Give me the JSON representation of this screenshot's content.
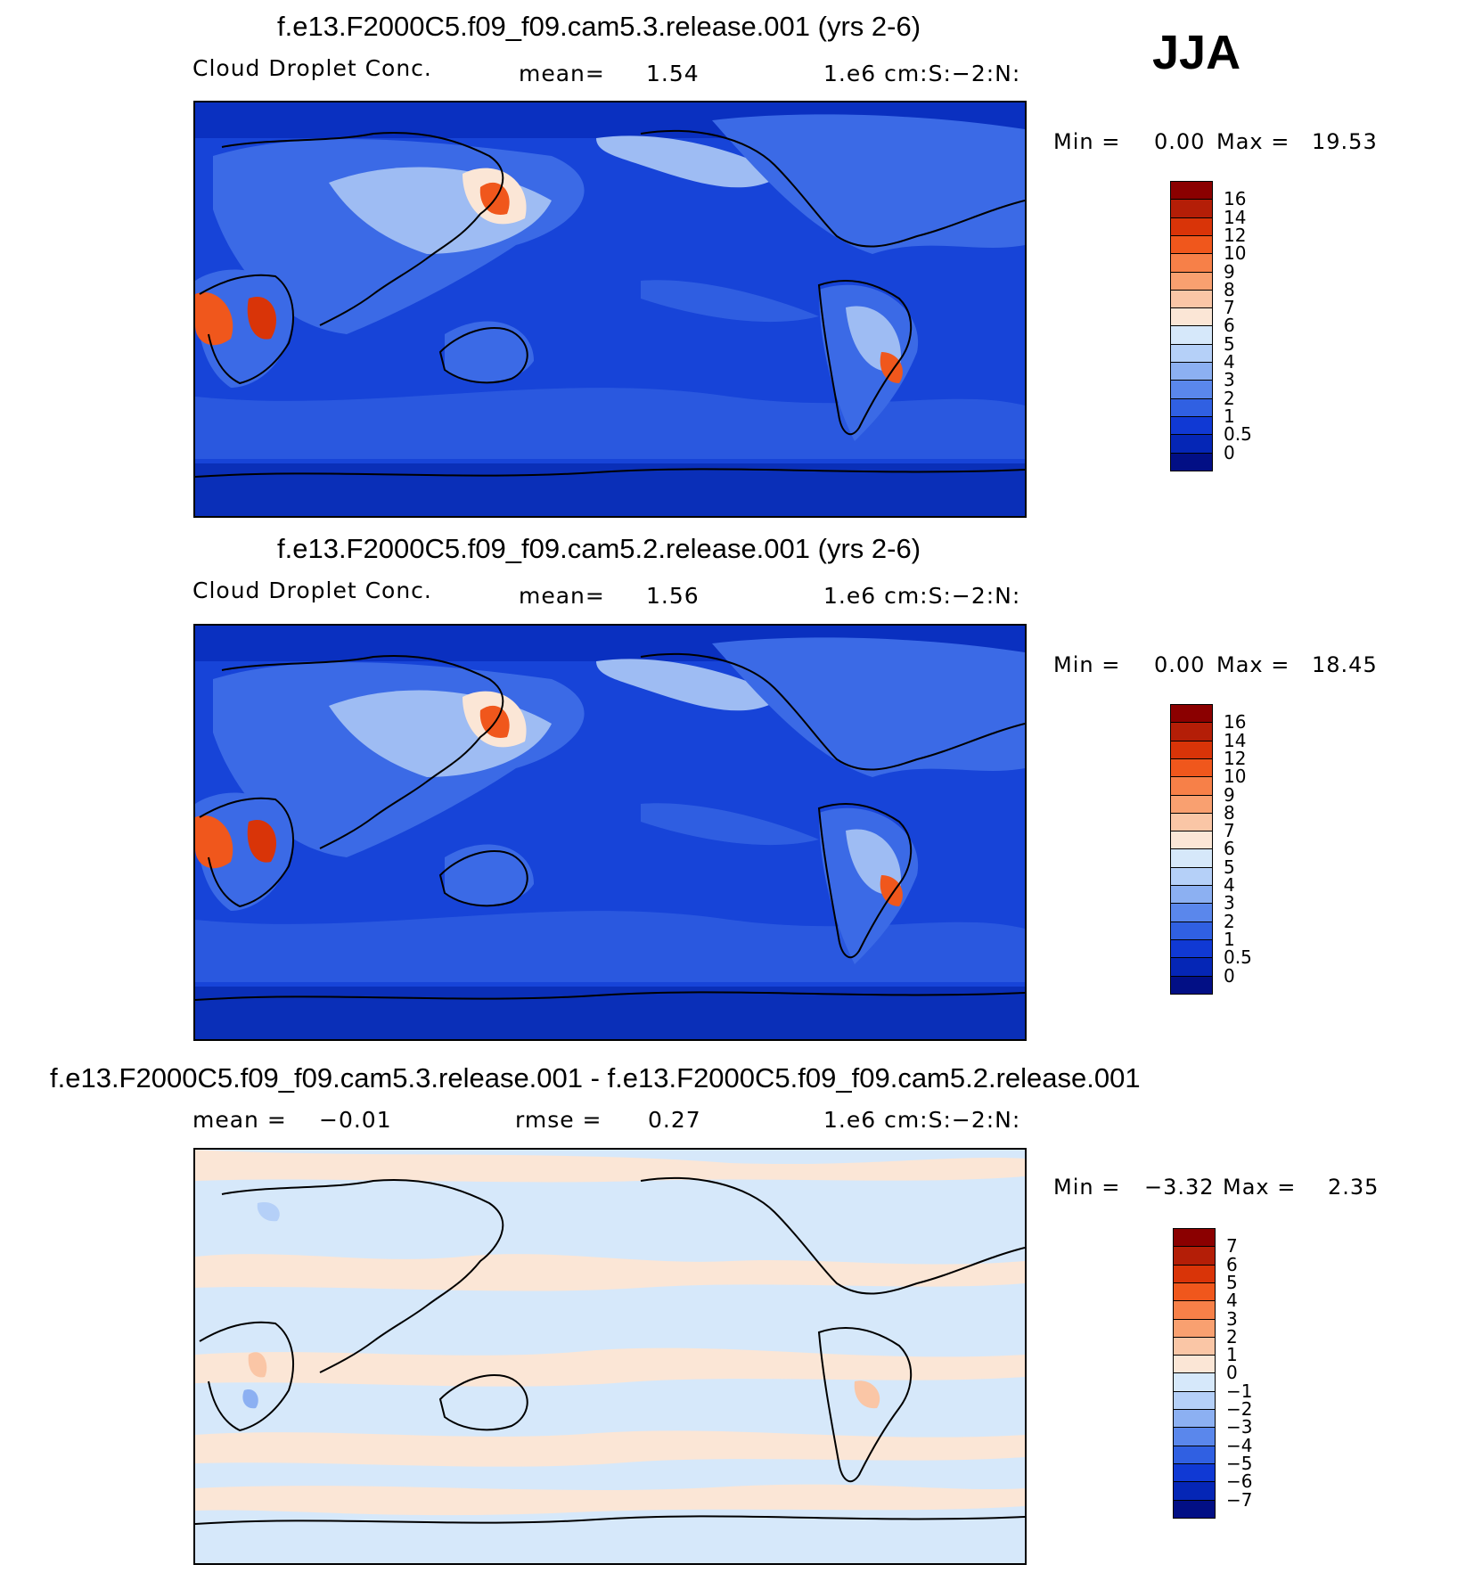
{
  "season": "JJA",
  "panels": [
    {
      "title": "f.e13.F2000C5.f09_f09.cam5.3.release.001 (yrs 2-6)",
      "left_label": "Cloud Droplet Conc.",
      "mid_label": "mean=",
      "mid_value": "1.54",
      "units": "1.e6 cm:S:−2:N:",
      "min_label": "Min =",
      "min_value": "0.00",
      "max_label": "Max =",
      "max_value": "19.53",
      "colorbar": {
        "labels": [
          "16",
          "14",
          "12",
          "10",
          "9",
          "8",
          "7",
          "6",
          "5",
          "4",
          "3",
          "2",
          "1",
          "0.5",
          "0"
        ],
        "colors": [
          "#8b0000",
          "#b41e07",
          "#d93408",
          "#f0571c",
          "#f78048",
          "#f9a070",
          "#fac6a6",
          "#fbe6d6",
          "#d6e8fa",
          "#b5d0f8",
          "#8cb0f2",
          "#5a87ec",
          "#3060e2",
          "#1039d4",
          "#0526b6",
          "#020f85"
        ]
      },
      "field_colors": {
        "ocean": "#1744d8",
        "ocean_low": "#0a30c0",
        "land": "#3b6ae6",
        "plume_mid": "#9ebcf3",
        "plume_hi": "#fbe6d6",
        "hot": "#f0571c",
        "hottest": "#d93408",
        "antarctic": "#0a2fb8"
      }
    },
    {
      "title": "f.e13.F2000C5.f09_f09.cam5.2.release.001 (yrs 2-6)",
      "left_label": "Cloud Droplet Conc.",
      "mid_label": "mean=",
      "mid_value": "1.56",
      "units": "1.e6 cm:S:−2:N:",
      "min_label": "Min =",
      "min_value": "0.00",
      "max_label": "Max =",
      "max_value": "18.45",
      "colorbar": {
        "labels": [
          "16",
          "14",
          "12",
          "10",
          "9",
          "8",
          "7",
          "6",
          "5",
          "4",
          "3",
          "2",
          "1",
          "0.5",
          "0"
        ],
        "colors": [
          "#8b0000",
          "#b41e07",
          "#d93408",
          "#f0571c",
          "#f78048",
          "#f9a070",
          "#fac6a6",
          "#fbe6d6",
          "#d6e8fa",
          "#b5d0f8",
          "#8cb0f2",
          "#5a87ec",
          "#3060e2",
          "#1039d4",
          "#0526b6",
          "#020f85"
        ]
      },
      "field_colors": {
        "ocean": "#1744d8",
        "ocean_low": "#0a30c0",
        "land": "#3b6ae6",
        "plume_mid": "#9ebcf3",
        "plume_hi": "#fbe6d6",
        "hot": "#f0571c",
        "hottest": "#d93408",
        "antarctic": "#0a2fb8"
      }
    },
    {
      "title": "f.e13.F2000C5.f09_f09.cam5.3.release.001 - f.e13.F2000C5.f09_f09.cam5.2.release.001",
      "left_label": "mean =",
      "left_value": "−0.01",
      "mid_label": "rmse =",
      "mid_value": "0.27",
      "units": "1.e6 cm:S:−2:N:",
      "min_label": "Min =",
      "min_value": "−3.32",
      "max_label": "Max =",
      "max_value": "2.35",
      "colorbar": {
        "labels": [
          "7",
          "6",
          "5",
          "4",
          "3",
          "2",
          "1",
          "0",
          "−1",
          "−2",
          "−3",
          "−4",
          "−5",
          "−6",
          "−7"
        ],
        "colors": [
          "#8b0000",
          "#b41e07",
          "#d93408",
          "#f0571c",
          "#f78048",
          "#f9a070",
          "#fac6a6",
          "#fbe6d6",
          "#d6e8fa",
          "#b5d0f8",
          "#8cb0f2",
          "#5a87ec",
          "#3060e2",
          "#1039d4",
          "#0526b6",
          "#020f85"
        ]
      },
      "field_colors": {
        "base": "#d6e8fa",
        "warm": "#fbe6d6",
        "warm2": "#fac6a6",
        "cool": "#b5d0f8",
        "cool2": "#8cb0f2"
      }
    }
  ]
}
